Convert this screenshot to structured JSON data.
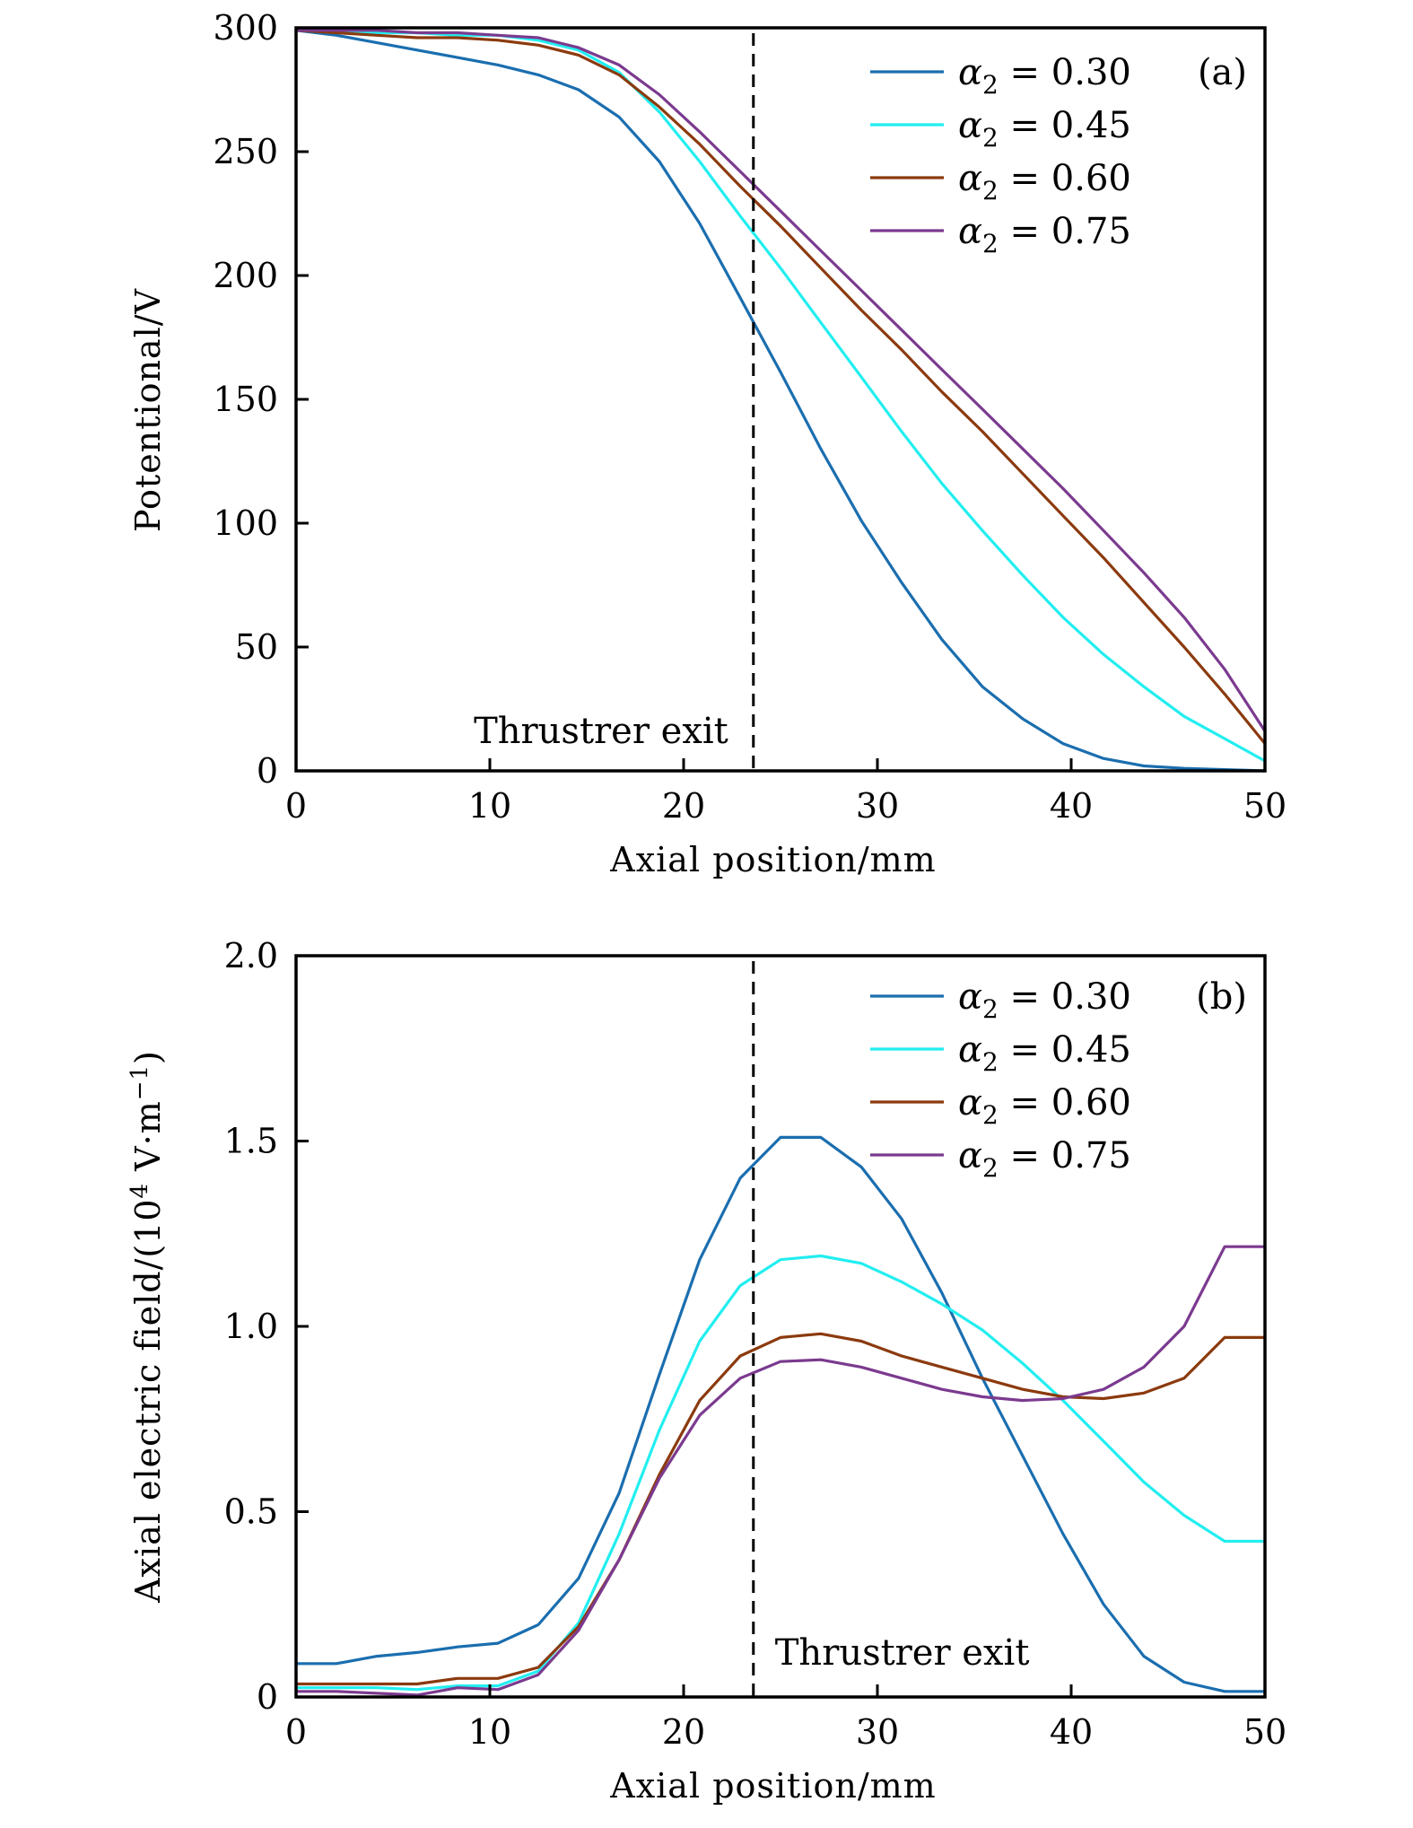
{
  "chart_data": [
    {
      "id": "a",
      "type": "line",
      "panel_label": "(a)",
      "title": "",
      "xlabel": "Axial position/mm",
      "ylabel": "Potentional/V",
      "xlim": [
        0,
        50
      ],
      "ylim": [
        0,
        300
      ],
      "xticks": [
        0,
        10,
        20,
        30,
        40,
        50
      ],
      "yticks": [
        0,
        50,
        100,
        150,
        200,
        250,
        300
      ],
      "xtick_labels": [
        "0",
        "10",
        "20",
        "30",
        "40",
        "50"
      ],
      "ytick_labels": [
        "0",
        "50",
        "100",
        "150",
        "200",
        "250",
        "300"
      ],
      "grid": false,
      "legend_position": "top-right",
      "annotation": {
        "text": "Thrustrer exit",
        "x_line": 23.6
      },
      "x": [
        0,
        2.08,
        4.17,
        6.25,
        8.33,
        10.42,
        12.5,
        14.58,
        16.67,
        18.75,
        20.83,
        22.92,
        25.0,
        27.08,
        29.17,
        31.25,
        33.33,
        35.42,
        37.5,
        39.58,
        41.67,
        43.75,
        45.83,
        47.92,
        50.0
      ],
      "series": [
        {
          "name": "α₂ = 0.30",
          "greek": "α",
          "sub": "2",
          "value": "0.30",
          "color": "#1a6eaf",
          "values": [
            299,
            297,
            294,
            291,
            288,
            285,
            281,
            275,
            264,
            246,
            221,
            191,
            161,
            130,
            101,
            76,
            53,
            34,
            21,
            11,
            5,
            2,
            1,
            0.5,
            0
          ]
        },
        {
          "name": "α₂ = 0.45",
          "greek": "α",
          "sub": "2",
          "value": "0.45",
          "color": "#22eef0",
          "values": [
            299,
            299,
            298,
            298,
            297,
            297,
            295,
            291,
            282,
            266,
            246,
            224,
            203,
            181,
            159,
            137,
            116,
            97,
            79,
            62,
            47,
            34,
            22,
            13,
            4
          ]
        },
        {
          "name": "α₂ = 0.60",
          "greek": "α",
          "sub": "2",
          "value": "0.60",
          "color": "#8b3a0e",
          "values": [
            299,
            298,
            297,
            296,
            296,
            295,
            293,
            289,
            281,
            268,
            253,
            236,
            220,
            203,
            186,
            170,
            153,
            137,
            120,
            103,
            86,
            68,
            50,
            31,
            11
          ]
        },
        {
          "name": "α₂ = 0.75",
          "greek": "α",
          "sub": "2",
          "value": "0.75",
          "color": "#7b3a8f",
          "values": [
            299,
            299,
            299,
            298,
            298,
            297,
            296,
            292,
            285,
            273,
            258,
            242,
            226,
            210,
            194,
            178,
            162,
            146,
            130,
            114,
            97,
            80,
            62,
            41,
            16
          ]
        }
      ]
    },
    {
      "id": "b",
      "type": "line",
      "panel_label": "(b)",
      "title": "",
      "xlabel": "Axial position/mm",
      "ylabel_main": "Axial electric field/(10",
      "ylabel_sup1": "4",
      "ylabel_mid": " V·m",
      "ylabel_sup2": "−1",
      "ylabel_end": ")",
      "ylabel": "Axial electric field/(10⁴ V·m⁻¹)",
      "xlim": [
        0,
        50
      ],
      "ylim": [
        0,
        2.0
      ],
      "xticks": [
        0,
        10,
        20,
        30,
        40,
        50
      ],
      "yticks": [
        0,
        0.5,
        1.0,
        1.5,
        2.0
      ],
      "xtick_labels": [
        "0",
        "10",
        "20",
        "30",
        "40",
        "50"
      ],
      "ytick_labels": [
        "0",
        "0.5",
        "1.0",
        "1.5",
        "2.0"
      ],
      "grid": false,
      "legend_position": "top-right",
      "annotation": {
        "text": "Thrustrer exit",
        "x_line": 23.6
      },
      "x": [
        0,
        2.08,
        4.17,
        6.25,
        8.33,
        10.42,
        12.5,
        14.58,
        16.67,
        18.75,
        20.83,
        22.92,
        25.0,
        27.08,
        29.17,
        31.25,
        33.33,
        35.42,
        37.5,
        39.58,
        41.67,
        43.75,
        45.83,
        47.92,
        50.0
      ],
      "series": [
        {
          "name": "α₂ = 0.30",
          "greek": "α",
          "sub": "2",
          "value": "0.30",
          "color": "#1a6eaf",
          "values": [
            0.09,
            0.09,
            0.11,
            0.12,
            0.135,
            0.145,
            0.195,
            0.32,
            0.55,
            0.87,
            1.18,
            1.4,
            1.51,
            1.51,
            1.43,
            1.29,
            1.09,
            0.86,
            0.65,
            0.44,
            0.25,
            0.11,
            0.04,
            0.015,
            0.015
          ]
        },
        {
          "name": "α₂ = 0.45",
          "greek": "α",
          "sub": "2",
          "value": "0.45",
          "color": "#22eef0",
          "values": [
            0.025,
            0.025,
            0.025,
            0.02,
            0.03,
            0.03,
            0.07,
            0.2,
            0.44,
            0.72,
            0.96,
            1.11,
            1.18,
            1.19,
            1.17,
            1.12,
            1.06,
            0.99,
            0.9,
            0.8,
            0.69,
            0.58,
            0.49,
            0.42,
            0.42
          ]
        },
        {
          "name": "α₂ = 0.60",
          "greek": "α",
          "sub": "2",
          "value": "0.60",
          "color": "#8b3a0e",
          "values": [
            0.035,
            0.035,
            0.035,
            0.035,
            0.05,
            0.05,
            0.08,
            0.19,
            0.37,
            0.6,
            0.8,
            0.92,
            0.97,
            0.98,
            0.96,
            0.92,
            0.89,
            0.86,
            0.83,
            0.81,
            0.805,
            0.82,
            0.86,
            0.97,
            0.97
          ]
        },
        {
          "name": "α₂ = 0.75",
          "greek": "α",
          "sub": "2",
          "value": "0.75",
          "color": "#7b3a8f",
          "values": [
            0.015,
            0.015,
            0.01,
            0.005,
            0.025,
            0.02,
            0.06,
            0.18,
            0.37,
            0.59,
            0.76,
            0.86,
            0.905,
            0.91,
            0.89,
            0.86,
            0.83,
            0.81,
            0.8,
            0.805,
            0.83,
            0.89,
            1.0,
            1.215,
            1.215
          ]
        }
      ]
    }
  ]
}
